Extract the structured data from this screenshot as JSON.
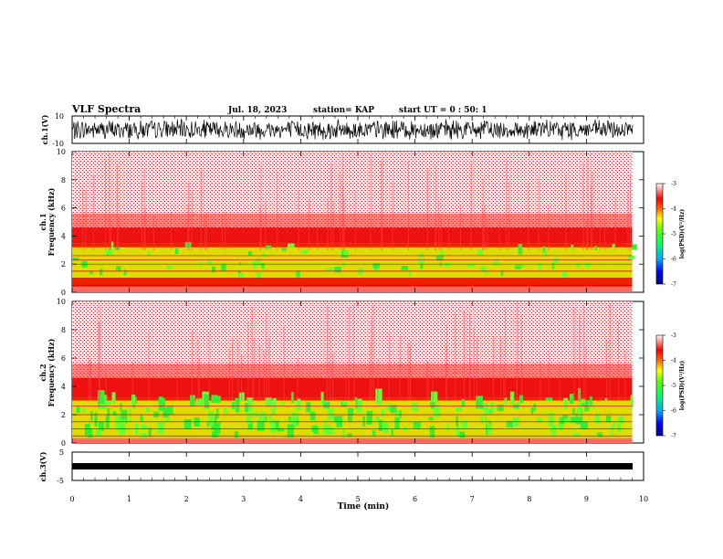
{
  "header": {
    "title": "VLF Spectra",
    "date": "Jul. 18, 2023",
    "station": "station= KAP",
    "start": "start UT =  0 : 50: 1"
  },
  "colors": {
    "spectrogram_low": "#00ee00",
    "spectrogram_mid": "#eeee00",
    "spectrogram_high": "#ee0000",
    "background": "#ffffff",
    "waveform": "#000000"
  },
  "chart_data": [
    {
      "type": "line",
      "name": "ch1-waveform",
      "ylabel": "ch.1(V)",
      "ylim": [
        -10,
        10
      ],
      "yticks": [
        "10",
        "-10"
      ],
      "xlim": [
        0,
        10
      ],
      "description_values": {
        "typical_amplitude_range": [
          -8,
          8
        ]
      }
    },
    {
      "type": "heatmap",
      "name": "ch1-spectrogram",
      "ylabel": "ch.1\nFrequency (kHz)",
      "ylim": [
        0,
        10
      ],
      "yticks": [
        "0",
        "2",
        "4",
        "6",
        "8",
        "10"
      ],
      "xlim": [
        0,
        9.8
      ],
      "intense_band_khz": [
        0,
        3.5
      ],
      "green_band_khz": [
        1.0,
        3.2
      ],
      "harmonic_lines_khz": [
        0.5,
        1.0,
        1.5,
        2.0,
        2.3,
        2.6
      ],
      "colorbar": {
        "label": "log(PSD)(V²/Hz)",
        "range": [
          -7,
          -3
        ],
        "ticks": [
          "-3",
          "-4",
          "-5",
          "-6",
          "-7"
        ]
      }
    },
    {
      "type": "heatmap",
      "name": "ch2-spectrogram",
      "ylabel": "ch.2\nFrequency (kHz)",
      "ylim": [
        0,
        10
      ],
      "yticks": [
        "0",
        "2",
        "4",
        "6",
        "8",
        "10"
      ],
      "xlim": [
        0,
        9.8
      ],
      "intense_band_khz": [
        0,
        3.2
      ],
      "green_band_khz": [
        0.3,
        3.0
      ],
      "harmonic_lines_khz": [
        0.5,
        1.0,
        1.5,
        2.0,
        2.6
      ],
      "colorbar": {
        "label": "log(PSD)(V²/Hz)",
        "range": [
          -7,
          -3
        ],
        "ticks": [
          "-3",
          "-4",
          "-5",
          "-6",
          "-7"
        ]
      }
    },
    {
      "type": "line",
      "name": "ch3-waveform",
      "ylabel": "ch.3(V)",
      "ylim": [
        -5,
        5
      ],
      "yticks": [
        "5",
        "0",
        "-5"
      ],
      "xlim": [
        0,
        9.8
      ],
      "level_v": [
        -0.5,
        0.5
      ]
    }
  ],
  "xaxis": {
    "label": "Time (min)",
    "ticks": [
      "0",
      "1",
      "2",
      "3",
      "4",
      "5",
      "6",
      "7",
      "8",
      "9",
      "10"
    ]
  }
}
